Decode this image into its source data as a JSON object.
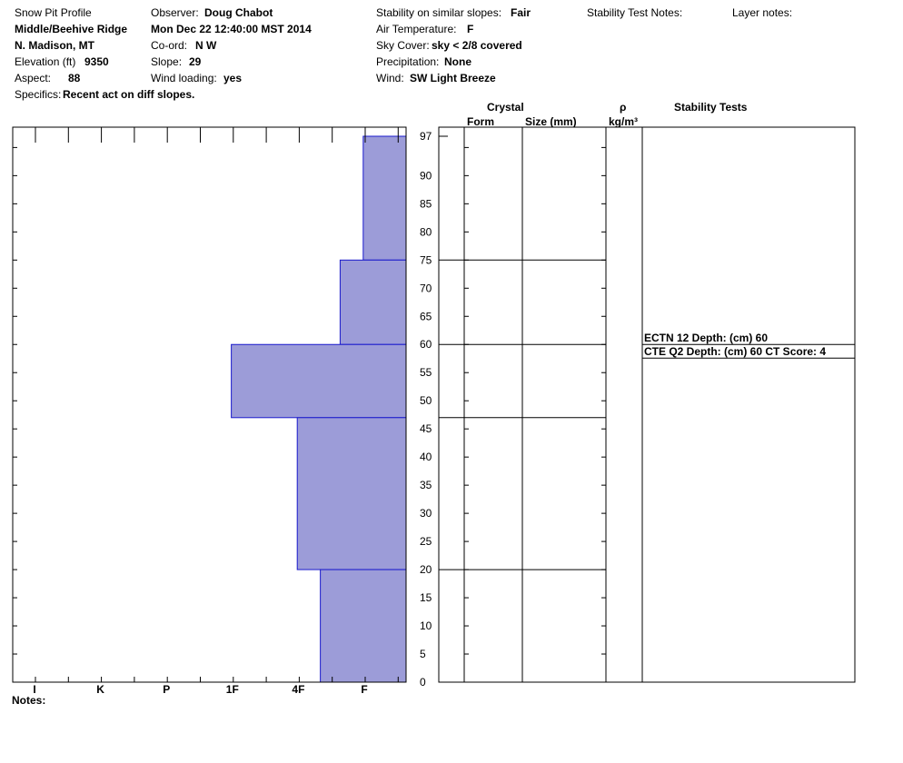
{
  "header": {
    "title": "Snow Pit Profile",
    "location1": "Middle/Beehive Ridge",
    "location2": "N. Madison, MT",
    "elevation_label": "Elevation (ft)",
    "elevation_value": "9350",
    "aspect_label": "Aspect:",
    "aspect_value": "88",
    "specifics_label": "Specifics:",
    "specifics_value": "Recent act on diff slopes.",
    "observer_label": "Observer:",
    "observer_value": "Doug Chabot",
    "datetime": "Mon Dec 22 12:40:00 MST 2014",
    "coord_label": "Co-ord:",
    "coord_value": "N  W",
    "slope_label": "Slope:",
    "slope_value": "29",
    "wind_loading_label": "Wind loading:",
    "wind_loading_value": "yes",
    "stability_label": "Stability on similar slopes:",
    "stability_value": "Fair",
    "air_temp_label": "Air Temperature:",
    "air_temp_value": "F",
    "sky_label": "Sky Cover:",
    "sky_value": "sky < 2/8 covered",
    "precip_label": "Precipitation:",
    "precip_value": "None",
    "wind_label": "Wind:",
    "wind_value": "SW Light Breeze",
    "stability_notes_label": "Stability Test Notes:",
    "layer_notes_label": "Layer notes:"
  },
  "notes_label": "Notes:",
  "columns": {
    "crystal": "Crystal",
    "form": "Form",
    "size": "Size (mm)",
    "rho": "ρ",
    "density_unit": "kg/m³",
    "stability_tests": "Stability Tests"
  },
  "chart_data": {
    "type": "bar",
    "orientation": "horizontal-step",
    "hardness_categories": [
      "I",
      "K",
      "P",
      "1F",
      "4F",
      "F"
    ],
    "depth_ticks": [
      97,
      90,
      85,
      80,
      75,
      70,
      65,
      60,
      55,
      50,
      45,
      40,
      35,
      30,
      25,
      20,
      15,
      10,
      5,
      0
    ],
    "ylim": [
      0,
      97
    ],
    "layers": [
      {
        "top": 97,
        "bottom": 75,
        "hardness": 0.65
      },
      {
        "top": 75,
        "bottom": 60,
        "hardness": 1.0
      },
      {
        "top": 60,
        "bottom": 47,
        "hardness": 2.65
      },
      {
        "top": 47,
        "bottom": 20,
        "hardness": 1.65
      },
      {
        "top": 20,
        "bottom": 0,
        "hardness": 1.3
      }
    ],
    "layer_boundaries": [
      75,
      60,
      47,
      20
    ],
    "stability_tests": [
      {
        "text": "ECTN 12   Depth: (cm) 60",
        "depth": 60
      },
      {
        "text": "CTE Q2 Depth: (cm) 60 CT Score: 4",
        "depth": 60
      }
    ],
    "fill_color": "#9c9cd8",
    "stroke_color": "#1a1acc"
  }
}
